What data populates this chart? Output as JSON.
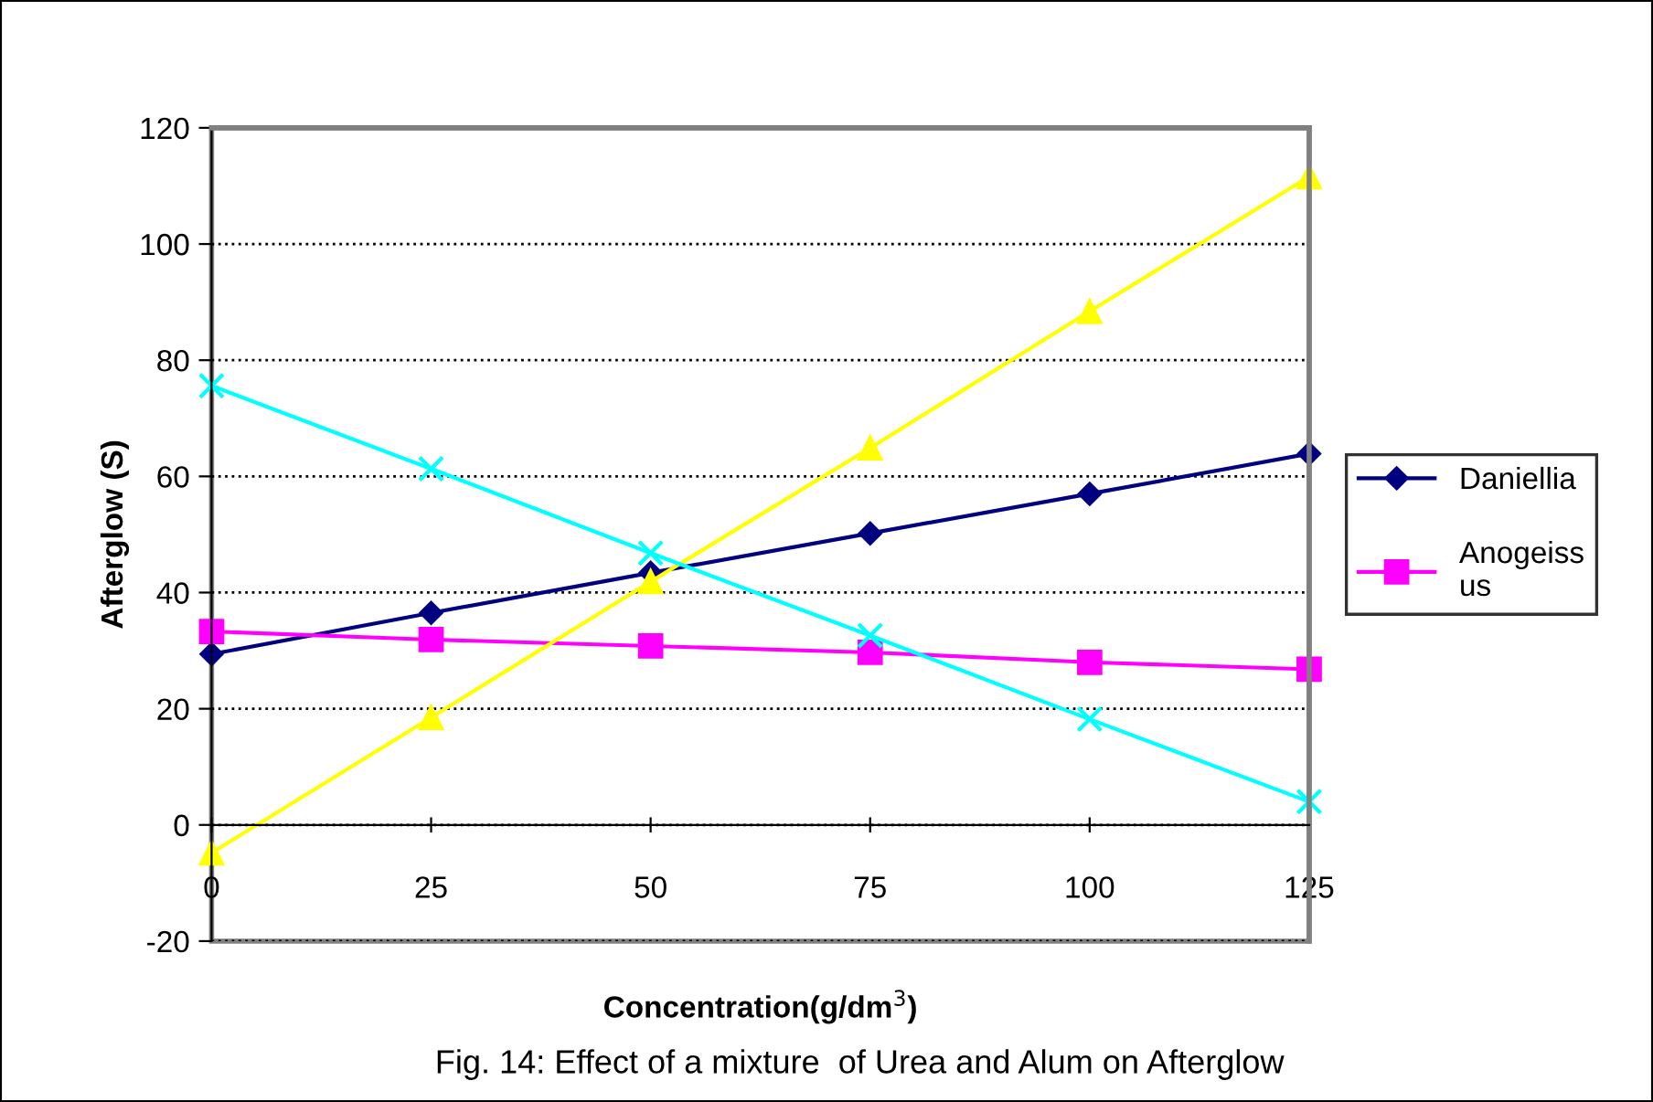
{
  "chart_data": {
    "type": "line",
    "xlabel": "Concentration(g/dm$^{3}$)",
    "ylabel": "Afterglow (S)",
    "x": [
      0,
      25,
      50,
      75,
      100,
      125
    ],
    "series": [
      {
        "name": "Daniellia",
        "color": "#000080",
        "marker": "diamond",
        "values": [
          29.4,
          36.5,
          43.4,
          50.2,
          57.0,
          63.9
        ]
      },
      {
        "name": "Anogeiss\nus",
        "color": "#ff00ff",
        "marker": "square",
        "values": [
          33.3,
          31.9,
          30.8,
          29.7,
          28.0,
          26.8
        ]
      },
      {
        "color": "#ffff00",
        "marker": "triangle",
        "values": [
          -4.8,
          18.5,
          41.9,
          64.9,
          88.4,
          111.6
        ]
      },
      {
        "color": "#00ffff",
        "marker": "cross",
        "values": [
          75.6,
          61.3,
          46.8,
          32.6,
          18.2,
          4.0
        ]
      }
    ],
    "xlim": [
      0,
      125
    ],
    "xticks": [
      0,
      25,
      50,
      75,
      100,
      125
    ],
    "ylim": [
      -20,
      120
    ],
    "yticks": [
      -20,
      0,
      20,
      40,
      60,
      80,
      100,
      120
    ],
    "grid": "y",
    "legend": "right",
    "line_style": "solid",
    "annotations": [
      "Fig. 14: Effect of a mixture  of Urea and Alum on Afterglow"
    ]
  }
}
